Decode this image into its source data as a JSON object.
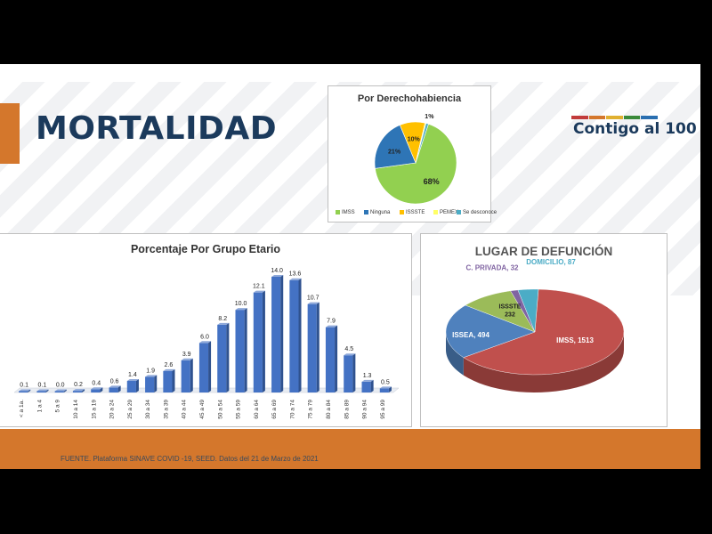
{
  "slide": {
    "title": "MORTALIDAD",
    "logo_text": "Contigo al 100",
    "logo_colors": [
      "#c23b3b",
      "#d4772c",
      "#e0b030",
      "#3a8a3a",
      "#2a6fb0"
    ],
    "source": "FUENTE. Plataforma SINAVE COVID -19, SEED. Datos del 21 de Marzo de 2021",
    "accent_color": "#d4772c",
    "title_color": "#1b3a5c"
  },
  "chart_data": [
    {
      "type": "pie",
      "title": "Por Derechohabiencia",
      "slices": [
        {
          "name": "IMSS",
          "value": 68,
          "label": "68%",
          "color": "#92d050"
        },
        {
          "name": "Ninguna",
          "value": 21,
          "label": "21%",
          "color": "#2e75b6"
        },
        {
          "name": "ISSSTE",
          "value": 10,
          "label": "10%",
          "color": "#ffc000"
        },
        {
          "name": "PEMEX",
          "value": 0.4,
          "label": "",
          "color": "#ffff66"
        },
        {
          "name": "Se desconoce",
          "value": 1,
          "label": "1%",
          "color": "#4bacc6"
        }
      ],
      "legend": "bottom"
    },
    {
      "type": "bar",
      "title": "Porcentaje Por Grupo Etario",
      "categories": [
        "< a 1a.",
        "1 a 4",
        "5 a 9",
        "10 a 14",
        "15 a 19",
        "20 a 24",
        "25 a 29",
        "30 a 34",
        "35 a 39",
        "40 a 44",
        "45 a 49",
        "50 a 54",
        "55 a 59",
        "60 a 64",
        "65 a 69",
        "70 a 74",
        "75 a 79",
        "80 a 84",
        "85 a 89",
        "90 a 94",
        "95 a 99"
      ],
      "values": [
        0.1,
        0.1,
        0.0,
        0.2,
        0.4,
        0.6,
        1.4,
        1.9,
        2.6,
        3.9,
        6.0,
        8.2,
        10.0,
        12.1,
        14.0,
        13.6,
        10.7,
        7.9,
        4.5,
        1.3,
        0.5
      ],
      "value_labels": [
        "0.1",
        "0.1",
        "0.0",
        "0.2",
        "0.4",
        "0.6",
        "1.4",
        "1.9",
        "2.6",
        "3.9",
        "6.0",
        "8.2",
        "10.0",
        "12.1",
        "14.0",
        "13.6",
        "10.7",
        "7.9",
        "4.5",
        "1.3",
        "0.5"
      ],
      "color": "#4472c4",
      "ylim": [
        0,
        14
      ],
      "grid": false
    },
    {
      "type": "pie",
      "title": "LUGAR DE DEFUNCIÓN",
      "slices": [
        {
          "name": "IMSS",
          "value": 1513,
          "label": "IMSS, 1513",
          "color": "#c0504d"
        },
        {
          "name": "ISSEA",
          "value": 494,
          "label": "ISSEA, 494",
          "color": "#4f81bd"
        },
        {
          "name": "ISSSTE",
          "value": 232,
          "label": "ISSSTE 232",
          "color": "#9bbb59"
        },
        {
          "name": "C. PRIVADA",
          "value": 32,
          "label": "C. PRIVADA, 32",
          "color": "#8064a2"
        },
        {
          "name": "DOMICILIO",
          "value": 87,
          "label": "DOMICILIO, 87",
          "color": "#4bacc6"
        }
      ],
      "style": "3d"
    }
  ]
}
